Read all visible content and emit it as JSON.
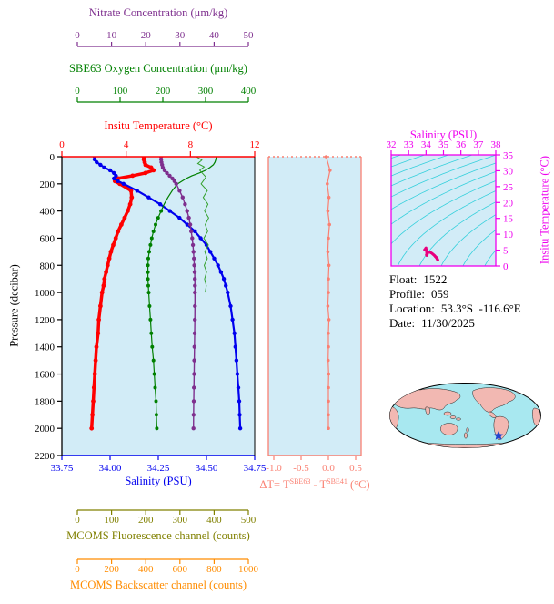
{
  "colors": {
    "temperature": "#FF0000",
    "salinity": "#0000EE",
    "oxygen": "#008000",
    "nitrate": "#7E2F8E",
    "pressure": "#000000",
    "fluorescence": "#808000",
    "fluorescence_curve": "#33A02C",
    "backscatter": "#FF8C00",
    "delta_t": "#FA8072",
    "ts": "#EE00EE",
    "ts_curve": "#E8007E",
    "contour": "#35D0DC",
    "plot_bg": "#D2ECF7",
    "map_ocean": "#A8E8F0",
    "map_land": "#F2B8B2",
    "star": "#2244CC"
  },
  "info": {
    "float_label": "Float:",
    "float_value": "1522",
    "profile_label": "Profile:",
    "profile_value": "059",
    "location_label": "Location:",
    "location_value": "53.3°S  -116.6°E",
    "date_label": "Date:",
    "date_value": "11/30/2025"
  },
  "chart_data": {
    "type": "line",
    "description": "Profiling float vertical profiles vs pressure, delta-T check plot, T-S diagram with density contours, and float location map",
    "axes": {
      "nitrate": {
        "label": "Nitrate Concentration (μm/kg)",
        "range": [
          0,
          50
        ],
        "ticks": [
          0,
          10,
          20,
          30,
          40,
          50
        ]
      },
      "oxygen": {
        "label": "SBE63 Oxygen Concentration (μm/kg)",
        "range": [
          0,
          400
        ],
        "ticks": [
          0,
          100,
          200,
          300,
          400
        ]
      },
      "temperature": {
        "label": "Insitu Temperature (°C)",
        "range": [
          0,
          12
        ],
        "ticks": [
          0,
          4,
          8,
          12
        ]
      },
      "pressure": {
        "label": "Pressure (decibar)",
        "range": [
          0,
          2200
        ],
        "ticks": [
          0,
          200,
          400,
          600,
          800,
          1000,
          1200,
          1400,
          1600,
          1800,
          2000,
          2200
        ]
      },
      "salinity": {
        "label": "Salinity (PSU)",
        "range": [
          33.75,
          34.75
        ],
        "ticks": [
          "33.75",
          "34.00",
          "34.25",
          "34.50",
          "34.75"
        ]
      },
      "fluorescence": {
        "label": "MCOMS Fluorescence channel (counts)",
        "range": [
          0,
          500
        ],
        "ticks": [
          0,
          100,
          200,
          300,
          400,
          500
        ]
      },
      "backscatter": {
        "label": "MCOMS Backscatter channel (counts)",
        "range": [
          0,
          1000
        ],
        "ticks": [
          0,
          200,
          400,
          600,
          800,
          1000
        ]
      },
      "delta_t": {
        "label_prefix": "ΔT= T",
        "label_sup1": "SBE63",
        "label_mid": " - T",
        "label_sup2": "SBE41",
        "label_suffix": " (°C)",
        "range": [
          -1.1,
          0.6
        ],
        "ticks": [
          "-1.0",
          "-0.5",
          "0.0",
          "0.5"
        ]
      },
      "ts_salinity": {
        "label": "Salinity (PSU)",
        "range": [
          32,
          38
        ],
        "ticks": [
          32,
          33,
          34,
          35,
          36,
          37,
          38
        ]
      },
      "ts_temperature": {
        "label": "Insitu Temperature (°C)",
        "range": [
          0,
          35
        ],
        "ticks": [
          0,
          5,
          10,
          15,
          20,
          25,
          30,
          35
        ]
      }
    },
    "pressure_db": [
      0,
      20,
      40,
      60,
      80,
      100,
      120,
      140,
      160,
      180,
      200,
      250,
      300,
      350,
      400,
      450,
      500,
      550,
      600,
      650,
      700,
      750,
      800,
      850,
      900,
      950,
      1000,
      1100,
      1200,
      1300,
      1400,
      1500,
      1600,
      1700,
      1800,
      1900,
      2000
    ],
    "series": [
      {
        "name": "Insitu Temperature",
        "axis": "temperature",
        "units": "°C",
        "values": [
          5.1,
          5.1,
          5.15,
          5.2,
          5.55,
          5.7,
          5.2,
          4.4,
          3.5,
          3.3,
          3.6,
          4.3,
          4.35,
          4.25,
          4.1,
          3.9,
          3.7,
          3.5,
          3.35,
          3.2,
          3.05,
          2.95,
          2.85,
          2.75,
          2.65,
          2.6,
          2.5,
          2.4,
          2.3,
          2.25,
          2.15,
          2.1,
          2.05,
          2.0,
          1.95,
          1.9,
          1.85
        ]
      },
      {
        "name": "Salinity",
        "axis": "salinity",
        "units": "PSU",
        "values": [
          33.92,
          33.92,
          33.93,
          33.95,
          33.97,
          34.0,
          34.02,
          34.03,
          34.02,
          34.04,
          34.07,
          34.14,
          34.2,
          34.26,
          34.31,
          34.36,
          34.4,
          34.44,
          34.47,
          34.5,
          34.52,
          34.54,
          34.56,
          34.575,
          34.59,
          34.6,
          34.61,
          34.625,
          34.635,
          34.645,
          34.65,
          34.655,
          34.66,
          34.665,
          34.67,
          34.672,
          34.675
        ]
      },
      {
        "name": "SBE63 Oxygen Concentration",
        "axis": "oxygen",
        "units": "μm/kg",
        "values": [
          325,
          324,
          322,
          318,
          310,
          300,
          285,
          268,
          255,
          245,
          235,
          222,
          212,
          203,
          196,
          189,
          183,
          178,
          174,
          171,
          168,
          166,
          165,
          165,
          165,
          166,
          167,
          169,
          171,
          173,
          175,
          178,
          180,
          182,
          184,
          185,
          186
        ]
      },
      {
        "name": "Nitrate Concentration",
        "axis": "nitrate",
        "units": "μm/kg",
        "values": [
          24.5,
          24.5,
          24.6,
          24.8,
          25.0,
          25.5,
          26.2,
          27.0,
          27.8,
          28.4,
          28.9,
          29.9,
          30.8,
          31.5,
          32.1,
          32.6,
          33.0,
          33.3,
          33.6,
          33.8,
          33.95,
          34.1,
          34.2,
          34.3,
          34.35,
          34.4,
          34.4,
          34.4,
          34.35,
          34.3,
          34.25,
          34.2,
          34.15,
          34.1,
          34.05,
          34.0,
          33.95
        ]
      }
    ],
    "fluorescence_profile": {
      "axis": "fluorescence",
      "units": "counts",
      "pressure_db": [
        0,
        25,
        50,
        75,
        100,
        150,
        200,
        250,
        300,
        350,
        400,
        450,
        500,
        550,
        600,
        650,
        700,
        750,
        800,
        850,
        900,
        950,
        1000
      ],
      "values": [
        348,
        364,
        352,
        371,
        358,
        376,
        362,
        380,
        368,
        382,
        372,
        384,
        374,
        381,
        370,
        383,
        373,
        380,
        371,
        378,
        372,
        377,
        374
      ]
    },
    "delta_t_profile": {
      "units": "°C",
      "pressure_db": [
        0,
        100,
        200,
        300,
        400,
        500,
        600,
        700,
        800,
        900,
        1000,
        1100,
        1200,
        1300,
        1400,
        1500,
        1600,
        1700,
        1800,
        1900,
        2000
      ],
      "values": [
        -0.04,
        0.03,
        -0.02,
        0.01,
        -0.01,
        0.02,
        0.0,
        -0.01,
        0.01,
        0.0,
        0.0,
        -0.01,
        0.01,
        0.0,
        0.0,
        -0.005,
        0.005,
        0.0,
        0.0,
        0.0,
        0.0
      ]
    },
    "ts_diagram": {
      "sigma_levels": [
        18,
        19,
        20,
        21,
        22,
        23,
        24,
        25,
        26,
        27,
        28,
        29,
        30
      ],
      "note": "T-S curve uses the salinity and temperature series above"
    }
  }
}
